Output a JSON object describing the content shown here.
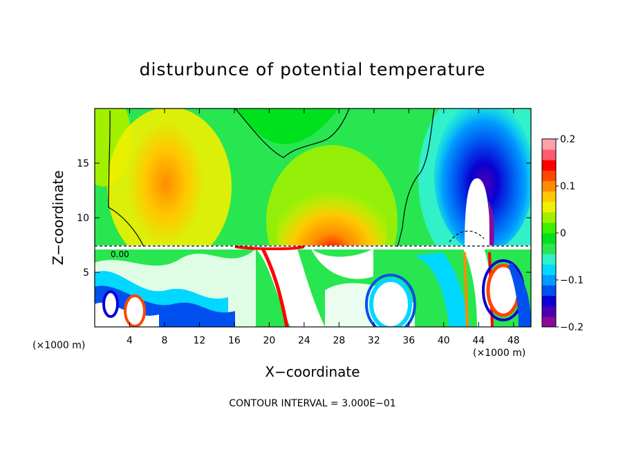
{
  "chart_data": {
    "type": "heatmap",
    "title": "disturbunce of potential temperature",
    "xlabel": "X−coordinate",
    "ylabel": "Z−coordinate",
    "x_unit": "(×1000 m)",
    "xlim": [
      0,
      50
    ],
    "ylim": [
      0,
      20
    ],
    "x_ticks": [
      4,
      8,
      12,
      16,
      20,
      24,
      28,
      32,
      36,
      40,
      44,
      48
    ],
    "y_ticks": [
      5,
      10,
      15
    ],
    "contour_interval_label": "CONTOUR INTERVAL = 3.000E−01",
    "contour_label": "0.00",
    "colorbar": {
      "range": [
        -0.2,
        0.2
      ],
      "tick_values": [
        0.2,
        0.1,
        0,
        -0.1,
        -0.2
      ],
      "tick_labels": [
        "0.2",
        "0.1",
        "0",
        "−0.1",
        "−0.2"
      ],
      "colors": [
        "#8c0a96",
        "#4b00b4",
        "#0a00d2",
        "#0050f0",
        "#009cff",
        "#00d8ff",
        "#32f0c8",
        "#28e650",
        "#00e11e",
        "#3cf000",
        "#a0f000",
        "#f0f000",
        "#ffc800",
        "#ff8c00",
        "#ff4600",
        "#ff0000",
        "#ff5a6e",
        "#ffa0aa"
      ]
    }
  }
}
